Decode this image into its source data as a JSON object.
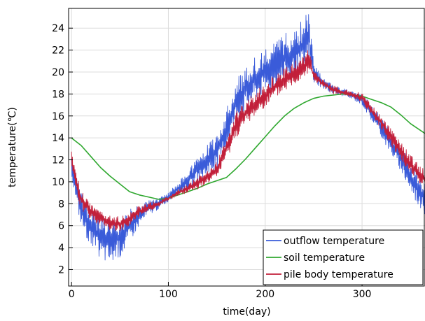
{
  "chart_data": {
    "type": "line",
    "title": "",
    "xlabel": "time(day)",
    "ylabel": "temperature(℃)",
    "xlim": [
      -3,
      365
    ],
    "ylim": [
      0.5,
      25.8
    ],
    "xticks": [
      0,
      100,
      200,
      300
    ],
    "yticks": [
      2,
      4,
      6,
      8,
      10,
      12,
      14,
      16,
      18,
      20,
      22,
      24
    ],
    "grid": true,
    "legend_position": "bottom-right",
    "series": [
      {
        "name": "outflow temperature",
        "color": "#3a5bd9",
        "style": "noisy-band",
        "x": [
          0,
          5,
          10,
          20,
          30,
          40,
          50,
          60,
          70,
          80,
          90,
          100,
          110,
          120,
          130,
          140,
          150,
          160,
          170,
          180,
          190,
          200,
          210,
          220,
          230,
          240,
          245,
          250,
          260,
          270,
          280,
          290,
          300,
          310,
          320,
          330,
          340,
          350,
          360,
          365
        ],
        "low": [
          10.5,
          8,
          6,
          4,
          2.8,
          2.5,
          3,
          4.5,
          6,
          7,
          7.5,
          8.2,
          8.8,
          9.2,
          9.8,
          10.5,
          11,
          13,
          15.5,
          16.5,
          17.5,
          18,
          18.5,
          19,
          19.5,
          20,
          21,
          19,
          18.5,
          18,
          17.8,
          17.5,
          17,
          15.5,
          14,
          12.5,
          11,
          9,
          7.5,
          7
        ],
        "high": [
          12.5,
          10.5,
          9,
          7.5,
          7,
          6.5,
          7,
          7.5,
          8,
          8.3,
          8.5,
          9,
          10,
          11,
          12.5,
          13.5,
          14.5,
          17,
          19.5,
          20.5,
          21.5,
          22,
          22.8,
          23.5,
          24,
          25,
          25.7,
          21,
          19.5,
          18.8,
          18.5,
          18.3,
          18,
          17,
          16,
          14.5,
          13.5,
          12,
          10.5,
          10
        ]
      },
      {
        "name": "soil temperature",
        "color": "#2fa82f",
        "style": "line",
        "x": [
          0,
          10,
          20,
          30,
          40,
          50,
          60,
          70,
          80,
          90,
          100,
          110,
          120,
          130,
          140,
          150,
          160,
          170,
          180,
          190,
          200,
          210,
          220,
          230,
          240,
          250,
          260,
          270,
          280,
          290,
          300,
          310,
          320,
          330,
          340,
          350,
          365
        ],
        "y": [
          14,
          13.3,
          12.3,
          11.3,
          10.5,
          9.8,
          9.1,
          8.8,
          8.6,
          8.4,
          8.5,
          8.8,
          9.1,
          9.4,
          9.8,
          10.1,
          10.4,
          11.2,
          12.1,
          13.1,
          14.1,
          15.1,
          16.0,
          16.7,
          17.2,
          17.6,
          17.8,
          17.9,
          18.0,
          17.9,
          17.8,
          17.5,
          17.2,
          16.8,
          16.1,
          15.3,
          14.4
        ]
      },
      {
        "name": "pile body temperature",
        "color": "#c21f3a",
        "style": "noisy-band",
        "x": [
          0,
          5,
          10,
          20,
          30,
          40,
          50,
          60,
          70,
          80,
          90,
          100,
          110,
          120,
          130,
          140,
          150,
          160,
          170,
          180,
          190,
          200,
          210,
          220,
          230,
          240,
          245,
          250,
          260,
          270,
          280,
          290,
          300,
          310,
          320,
          330,
          340,
          350,
          360,
          365
        ],
        "low": [
          11.5,
          9,
          7.5,
          6.5,
          6,
          5.5,
          5.5,
          6,
          6.8,
          7.3,
          7.7,
          8.3,
          8.7,
          9,
          9.3,
          9.8,
          10.3,
          12,
          14,
          15,
          16,
          16.8,
          17.5,
          18.2,
          18.8,
          19.5,
          20,
          19.2,
          18.5,
          18,
          17.8,
          17.6,
          17.3,
          16,
          14.8,
          13.3,
          12,
          10.8,
          9.8,
          9.5
        ],
        "high": [
          13,
          10.8,
          9.3,
          8,
          7.5,
          7,
          6.8,
          7.2,
          7.8,
          8.1,
          8.3,
          8.7,
          9.3,
          9.8,
          10.5,
          11,
          11.8,
          14,
          16.5,
          17.5,
          18.3,
          19,
          19.8,
          20.5,
          21,
          21.5,
          22.5,
          20.2,
          19.3,
          18.8,
          18.5,
          18.3,
          18.1,
          17,
          16,
          14.8,
          13.6,
          12.5,
          11.5,
          11
        ]
      }
    ]
  }
}
